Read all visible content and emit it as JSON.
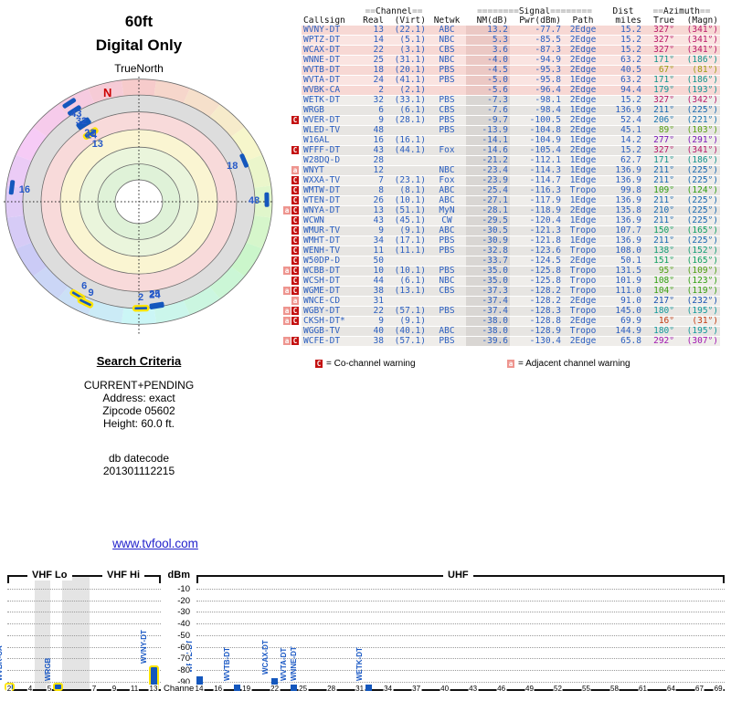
{
  "report": {
    "height_label": "60ft",
    "mode_label": "Digital Only",
    "true_north_label": "TrueNorth",
    "north_letter": "N",
    "search": {
      "title": "Search Criteria",
      "lines": [
        "CURRENT+PENDING",
        "Address: exact",
        "Zipcode 05602",
        "Height: 60.0 ft."
      ],
      "db_label": "db datecode",
      "db_value": "201301112215"
    },
    "link": "www.tvfool.com"
  },
  "colors": {
    "callsign_blue": "#2B5FC0",
    "bar_blue": "#1457BD",
    "highlight_yellow": "#FFE400",
    "co_warning_red": "#C41111",
    "adj_warning_pink": "#EE958F",
    "north_red": "#CC0000",
    "link_blue": "#2222CC"
  },
  "table": {
    "group_channel": {
      "pre": "==",
      "word": "Channel",
      "post": "=="
    },
    "group_signal": {
      "pre": "========",
      "word": "Signal",
      "post": "========"
    },
    "group_dist": "Dist",
    "group_azimuth": {
      "pre": "==",
      "word": "Azimuth",
      "post": "=="
    },
    "columns": {
      "callsign": "Callsign",
      "real": "Real",
      "virt": "(Virt)",
      "netwk": "Netwk",
      "nm": "NM(dB)",
      "pwr": "Pwr(dBm)",
      "path": "Path",
      "miles": "miles",
      "true": "True",
      "magn": "(Magn)"
    },
    "rows": [
      {
        "warn": "",
        "call": "WVNY-DT",
        "real": "13",
        "virt": "(22.1)",
        "net": "ABC",
        "nm": "13.2",
        "pwr": "-77.7",
        "path": "2Edge",
        "mi": "15.2",
        "az": "327°",
        "magn": "(341°)",
        "color": "#B81667",
        "band": "pink"
      },
      {
        "warn": "",
        "call": "WPTZ-DT",
        "real": "14",
        "virt": "(5.1)",
        "net": "NBC",
        "nm": "5.3",
        "pwr": "-85.5",
        "path": "2Edge",
        "mi": "15.2",
        "az": "327°",
        "magn": "(341°)",
        "color": "#B81667",
        "band": "pink"
      },
      {
        "warn": "",
        "call": "WCAX-DT",
        "real": "22",
        "virt": "(3.1)",
        "net": "CBS",
        "nm": "3.6",
        "pwr": "-87.3",
        "path": "2Edge",
        "mi": "15.2",
        "az": "327°",
        "magn": "(341°)",
        "color": "#B81667",
        "band": "pink"
      },
      {
        "warn": "",
        "call": "WNNE-DT",
        "real": "25",
        "virt": "(31.1)",
        "net": "NBC",
        "nm": "-4.0",
        "pwr": "-94.9",
        "path": "2Edge",
        "mi": "63.2",
        "az": "171°",
        "magn": "(186°)",
        "color": "#12938B",
        "band": "pink"
      },
      {
        "warn": "",
        "call": "WVTB-DT",
        "real": "18",
        "virt": "(20.1)",
        "net": "PBS",
        "nm": "-4.5",
        "pwr": "-95.3",
        "path": "2Edge",
        "mi": "40.5",
        "az": "67°",
        "magn": "(81°)",
        "color": "#9C9C10",
        "band": "pink"
      },
      {
        "warn": "",
        "call": "WVTA-DT",
        "real": "24",
        "virt": "(41.1)",
        "net": "PBS",
        "nm": "-5.0",
        "pwr": "-95.8",
        "path": "1Edge",
        "mi": "63.2",
        "az": "171°",
        "magn": "(186°)",
        "color": "#12938B",
        "band": "pink"
      },
      {
        "warn": "",
        "call": "WVBK-CA",
        "real": "2",
        "virt": "(2.1)",
        "net": "",
        "nm": "-5.6",
        "pwr": "-96.4",
        "path": "2Edge",
        "mi": "94.4",
        "az": "179°",
        "magn": "(193°)",
        "color": "#129597",
        "band": "pink"
      },
      {
        "warn": "",
        "call": "WETK-DT",
        "real": "32",
        "virt": "(33.1)",
        "net": "PBS",
        "nm": "-7.3",
        "pwr": "-98.1",
        "path": "2Edge",
        "mi": "15.2",
        "az": "327°",
        "magn": "(342°)",
        "color": "#B81667",
        "band": "gray"
      },
      {
        "warn": "",
        "call": "WRGB",
        "real": "6",
        "virt": "(6.1)",
        "net": "CBS",
        "nm": "-7.6",
        "pwr": "-98.4",
        "path": "1Edge",
        "mi": "136.9",
        "az": "211°",
        "magn": "(225°)",
        "color": "#1668B0",
        "band": "gray"
      },
      {
        "warn": "C",
        "call": "WVER-DT",
        "real": "9",
        "virt": "(28.1)",
        "net": "PBS",
        "nm": "-9.7",
        "pwr": "-100.5",
        "path": "2Edge",
        "mi": "52.4",
        "az": "206°",
        "magn": "(221°)",
        "color": "#1573AE",
        "band": "gray"
      },
      {
        "warn": "",
        "call": "WLED-TV",
        "real": "48",
        "virt": "",
        "net": "PBS",
        "nm": "-13.9",
        "pwr": "-104.8",
        "path": "2Edge",
        "mi": "45.1",
        "az": "89°",
        "magn": "(103°)",
        "color": "#58A012",
        "band": "gray"
      },
      {
        "warn": "",
        "call": "W16AL",
        "real": "16",
        "virt": "(16.1)",
        "net": "",
        "nm": "-14.1",
        "pwr": "-104.9",
        "path": "1Edge",
        "mi": "14.2",
        "az": "277°",
        "magn": "(291°)",
        "color": "#7A16B8",
        "band": "gray"
      },
      {
        "warn": "C",
        "call": "WFFF-DT",
        "real": "43",
        "virt": "(44.1)",
        "net": "Fox",
        "nm": "-14.6",
        "pwr": "-105.4",
        "path": "2Edge",
        "mi": "15.2",
        "az": "327°",
        "magn": "(341°)",
        "color": "#B81667",
        "band": "gray"
      },
      {
        "warn": "",
        "call": "W28DQ-D",
        "real": "28",
        "virt": "",
        "net": "",
        "nm": "-21.2",
        "pwr": "-112.1",
        "path": "1Edge",
        "mi": "62.7",
        "az": "171°",
        "magn": "(186°)",
        "color": "#12938B",
        "band": "gray"
      },
      {
        "warn": "a",
        "call": "WNYT",
        "real": "12",
        "virt": "",
        "net": "NBC",
        "nm": "-23.4",
        "pwr": "-114.3",
        "path": "1Edge",
        "mi": "136.9",
        "az": "211°",
        "magn": "(225°)",
        "color": "#1668B0",
        "band": "gray"
      },
      {
        "warn": "C",
        "call": "WXXA-TV",
        "real": "7",
        "virt": "(23.1)",
        "net": "Fox",
        "nm": "-23.9",
        "pwr": "-114.7",
        "path": "1Edge",
        "mi": "136.9",
        "az": "211°",
        "magn": "(225°)",
        "color": "#1668B0",
        "band": "gray"
      },
      {
        "warn": "C",
        "call": "WMTW-DT",
        "real": "8",
        "virt": "(8.1)",
        "net": "ABC",
        "nm": "-25.4",
        "pwr": "-116.3",
        "path": "Tropo",
        "mi": "99.8",
        "az": "109°",
        "magn": "(124°)",
        "color": "#2F9E10",
        "band": "gray"
      },
      {
        "warn": "C",
        "call": "WTEN-DT",
        "real": "26",
        "virt": "(10.1)",
        "net": "ABC",
        "nm": "-27.1",
        "pwr": "-117.9",
        "path": "1Edge",
        "mi": "136.9",
        "az": "211°",
        "magn": "(225°)",
        "color": "#1668B0",
        "band": "gray"
      },
      {
        "warn": "aC",
        "call": "WNYA-DT",
        "real": "13",
        "virt": "(51.1)",
        "net": "MyN",
        "nm": "-28.1",
        "pwr": "-118.9",
        "path": "2Edge",
        "mi": "135.8",
        "az": "210°",
        "magn": "(225°)",
        "color": "#1668B0",
        "band": "gray"
      },
      {
        "warn": "C",
        "call": "WCWN",
        "real": "43",
        "virt": "(45.1)",
        "net": "CW",
        "nm": "-29.5",
        "pwr": "-120.4",
        "path": "1Edge",
        "mi": "136.9",
        "az": "211°",
        "magn": "(225°)",
        "color": "#1668B0",
        "band": "gray"
      },
      {
        "warn": "C",
        "call": "WMUR-TV",
        "real": "9",
        "virt": "(9.1)",
        "net": "ABC",
        "nm": "-30.5",
        "pwr": "-121.3",
        "path": "Tropo",
        "mi": "107.7",
        "az": "150°",
        "magn": "(165°)",
        "color": "#10A060",
        "band": "gray"
      },
      {
        "warn": "C",
        "call": "WMHT-DT",
        "real": "34",
        "virt": "(17.1)",
        "net": "PBS",
        "nm": "-30.9",
        "pwr": "-121.8",
        "path": "1Edge",
        "mi": "136.9",
        "az": "211°",
        "magn": "(225°)",
        "color": "#1668B0",
        "band": "gray"
      },
      {
        "warn": "C",
        "call": "WENH-TV",
        "real": "11",
        "virt": "(11.1)",
        "net": "PBS",
        "nm": "-32.8",
        "pwr": "-123.6",
        "path": "Tropo",
        "mi": "108.0",
        "az": "138°",
        "magn": "(152°)",
        "color": "#129D74",
        "band": "gray"
      },
      {
        "warn": "C",
        "call": "W50DP-D",
        "real": "50",
        "virt": "",
        "net": "",
        "nm": "-33.7",
        "pwr": "-124.5",
        "path": "2Edge",
        "mi": "50.1",
        "az": "151°",
        "magn": "(165°)",
        "color": "#10A060",
        "band": "gray"
      },
      {
        "warn": "aC",
        "call": "WCBB-DT",
        "real": "10",
        "virt": "(10.1)",
        "net": "PBS",
        "nm": "-35.0",
        "pwr": "-125.8",
        "path": "Tropo",
        "mi": "131.5",
        "az": "95°",
        "magn": "(109°)",
        "color": "#4FA012",
        "band": "gray"
      },
      {
        "warn": "C",
        "call": "WCSH-DT",
        "real": "44",
        "virt": "(6.1)",
        "net": "NBC",
        "nm": "-35.0",
        "pwr": "-125.8",
        "path": "Tropo",
        "mi": "101.9",
        "az": "108°",
        "magn": "(123°)",
        "color": "#30A010",
        "band": "gray"
      },
      {
        "warn": "aC",
        "call": "WGME-DT",
        "real": "38",
        "virt": "(13.1)",
        "net": "CBS",
        "nm": "-37.3",
        "pwr": "-128.2",
        "path": "Tropo",
        "mi": "111.0",
        "az": "104°",
        "magn": "(119°)",
        "color": "#3AA012",
        "band": "gray"
      },
      {
        "warn": "a",
        "call": "WNCE-CD",
        "real": "31",
        "virt": "",
        "net": "",
        "nm": "-37.4",
        "pwr": "-128.2",
        "path": "2Edge",
        "mi": "91.0",
        "az": "217°",
        "magn": "(232°)",
        "color": "#1450B0",
        "band": "gray"
      },
      {
        "warn": "aC",
        "call": "WGBY-DT",
        "real": "22",
        "virt": "(57.1)",
        "net": "PBS",
        "nm": "-37.4",
        "pwr": "-128.3",
        "path": "Tropo",
        "mi": "145.0",
        "az": "180°",
        "magn": "(195°)",
        "color": "#12999B",
        "band": "gray"
      },
      {
        "warn": "aC",
        "call": "CKSH-DT*",
        "real": "9",
        "virt": "(9.1)",
        "net": "",
        "nm": "-38.0",
        "pwr": "-128.8",
        "path": "2Edge",
        "mi": "69.9",
        "az": "16°",
        "magn": "(31°)",
        "color": "#C23A10",
        "band": "gray"
      },
      {
        "warn": "",
        "call": "WGGB-TV",
        "real": "40",
        "virt": "(40.1)",
        "net": "ABC",
        "nm": "-38.0",
        "pwr": "-128.9",
        "path": "Tropo",
        "mi": "144.9",
        "az": "180°",
        "magn": "(195°)",
        "color": "#12999B",
        "band": "gray"
      },
      {
        "warn": "aC",
        "call": "WCFE-DT",
        "real": "38",
        "virt": "(57.1)",
        "net": "PBS",
        "nm": "-39.6",
        "pwr": "-130.4",
        "path": "2Edge",
        "mi": "65.8",
        "az": "292°",
        "magn": "(307°)",
        "color": "#A114B0",
        "band": "gray"
      }
    ],
    "legend": [
      {
        "symbol": "C",
        "text": "= Co-channel warning"
      },
      {
        "symbol": "a",
        "text": "= Adjacent channel warning"
      }
    ]
  },
  "chart_data": [
    {
      "type": "scatter",
      "name": "azimuth-radar",
      "title": "60ft Digital Only",
      "orientation_label": "TrueNorth",
      "north_letter": "N",
      "note": "polar plot: angle = true azimuth (N up, clockwise), radius grows as signal weakens",
      "points": [
        {
          "channel": 13,
          "azimuth_true": 327,
          "pwr_dbm": -77.7,
          "highlighted": true
        },
        {
          "channel": 14,
          "azimuth_true": 327,
          "pwr_dbm": -85.5,
          "highlighted": false
        },
        {
          "channel": 22,
          "azimuth_true": 327,
          "pwr_dbm": -87.3,
          "highlighted": false
        },
        {
          "channel": 25,
          "azimuth_true": 171,
          "pwr_dbm": -94.9,
          "highlighted": false
        },
        {
          "channel": 18,
          "azimuth_true": 67,
          "pwr_dbm": -95.3,
          "highlighted": false
        },
        {
          "channel": 24,
          "azimuth_true": 171,
          "pwr_dbm": -95.8,
          "highlighted": false
        },
        {
          "channel": 2,
          "azimuth_true": 179,
          "pwr_dbm": -96.4,
          "highlighted": true
        },
        {
          "channel": 32,
          "azimuth_true": 327,
          "pwr_dbm": -98.1,
          "highlighted": false
        },
        {
          "channel": 6,
          "azimuth_true": 211,
          "pwr_dbm": -98.4,
          "highlighted": true
        },
        {
          "channel": 9,
          "azimuth_true": 206,
          "pwr_dbm": -100.5,
          "highlighted": true
        },
        {
          "channel": 48,
          "azimuth_true": 89,
          "pwr_dbm": -104.8,
          "highlighted": false
        },
        {
          "channel": 16,
          "azimuth_true": 277,
          "pwr_dbm": -104.9,
          "highlighted": false
        },
        {
          "channel": 43,
          "azimuth_true": 327,
          "pwr_dbm": -105.4,
          "highlighted": false
        }
      ]
    },
    {
      "type": "bar",
      "name": "signal-strength-by-channel",
      "ylabel": "dBm",
      "xlabel": "Channel",
      "band_labels": [
        "VHF Lo",
        "VHF Hi",
        "UHF"
      ],
      "yticks": [
        -10,
        -20,
        -30,
        -40,
        -50,
        -60,
        -70,
        -80,
        -90
      ],
      "ylim": [
        -10,
        -98
      ],
      "grid": true,
      "vhf_ticks": [
        2,
        4,
        5,
        7,
        9,
        11,
        13
      ],
      "uhf_ticks": [
        14,
        16,
        19,
        22,
        25,
        28,
        31,
        34,
        37,
        40,
        43,
        46,
        49,
        52,
        55,
        58,
        61,
        64,
        67,
        69
      ],
      "bars": [
        {
          "callsign": "WVBK-CA",
          "channel": 2,
          "band": "vhf",
          "pwr_dbm": -96.4,
          "highlighted": true
        },
        {
          "callsign": "WRGB",
          "channel": 6,
          "band": "vhf",
          "pwr_dbm": -98.4,
          "highlighted": true
        },
        {
          "callsign": "WVNY-DT",
          "channel": 13,
          "band": "vhf",
          "pwr_dbm": -77.7,
          "highlighted": true
        },
        {
          "callsign": "WPTZ-DT",
          "channel": 14,
          "band": "uhf",
          "pwr_dbm": -85.5,
          "highlighted": false
        },
        {
          "callsign": "WVTB-DT",
          "channel": 18,
          "band": "uhf",
          "pwr_dbm": -95.3,
          "highlighted": false
        },
        {
          "callsign": "WCAX-DT",
          "channel": 22,
          "band": "uhf",
          "pwr_dbm": -87.3,
          "highlighted": false
        },
        {
          "callsign": "WVTA-DT",
          "channel": 24,
          "band": "uhf",
          "pwr_dbm": -95.8,
          "highlighted": false
        },
        {
          "callsign": "WNNE-DT",
          "channel": 25,
          "band": "uhf",
          "pwr_dbm": -94.9,
          "highlighted": false
        },
        {
          "callsign": "WETK-DT",
          "channel": 32,
          "band": "uhf",
          "pwr_dbm": -98.1,
          "highlighted": false
        }
      ]
    }
  ]
}
